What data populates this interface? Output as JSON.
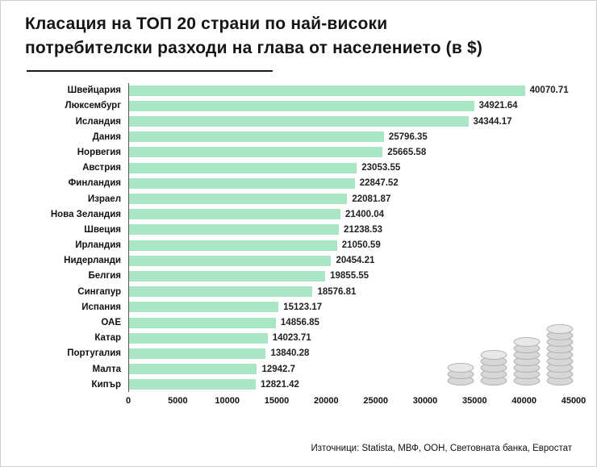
{
  "title": {
    "line1": "Класация на ТОП 20 страни по най-високи",
    "line2": "потребителски разходи на глава от населението (в $)"
  },
  "source": "Източници: Statista, МВФ, ООН, Световната банка, Евростат",
  "chart_data": {
    "type": "bar",
    "orientation": "horizontal",
    "title": "Класация на ТОП 20 страни по най-високи потребителски разходи на глава от населението (в $)",
    "categories": [
      "Швейцария",
      "Люксембург",
      "Исландия",
      "Дания",
      "Норвегия",
      "Австрия",
      "Финландия",
      "Израел",
      "Нова Зеландия",
      "Швеция",
      "Ирландия",
      "Нидерланди",
      "Белгия",
      "Сингапур",
      "Испания",
      "ОАЕ",
      "Катар",
      "Португалия",
      "Малта",
      "Кипър"
    ],
    "values": [
      40070.71,
      34921.64,
      34344.17,
      25796.35,
      25665.58,
      23053.55,
      22847.52,
      22081.87,
      21400.04,
      21238.53,
      21050.59,
      20454.21,
      19855.55,
      18576.81,
      15123.17,
      14856.85,
      14023.71,
      13840.28,
      12942.7,
      12821.42
    ],
    "value_labels": [
      "40070.71",
      "34921.64",
      "34344.17",
      "25796.35",
      "25665.58",
      "23053.55",
      "22847.52",
      "22081.87",
      "21400.04",
      "21238.53",
      "21050.59",
      "20454.21",
      "19855.55",
      "18576.81",
      "15123.17",
      "14856.85",
      "14023.71",
      "13840.28",
      "12942.7",
      "12821.42"
    ],
    "xlim": [
      0,
      45000
    ],
    "x_ticks": [
      "0",
      "5000",
      "10000",
      "15000",
      "20000",
      "25000",
      "30000",
      "35000",
      "40000",
      "45000"
    ],
    "bar_color": "#a9e7c4",
    "grid": false,
    "legend": false
  },
  "decor": {
    "icon": "coin-stacks",
    "stacks": [
      3,
      5,
      7,
      9
    ],
    "coin_fill": "#d7d7d7",
    "coin_top_fill": "#e8e8e8",
    "coin_stroke": "#b3b3b3"
  }
}
